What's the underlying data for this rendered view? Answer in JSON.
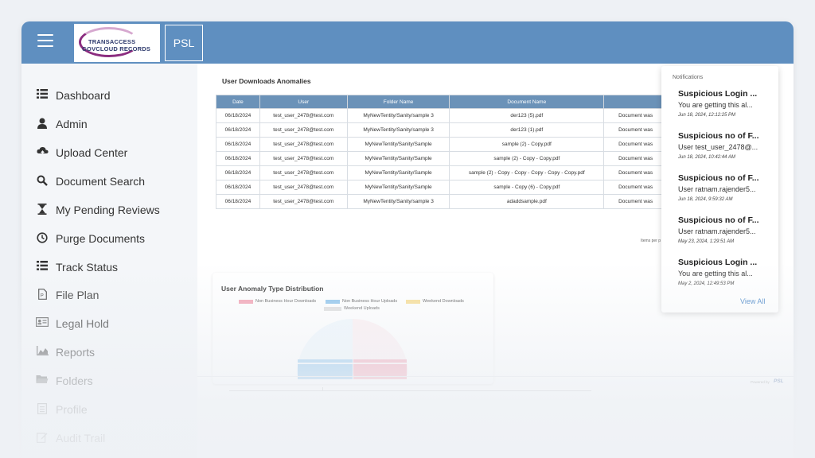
{
  "header": {
    "logo_line1": "TRANSACCESS",
    "logo_line2": "GOVCLOUD RECORDS",
    "psl_label": "PSL"
  },
  "sidebar": {
    "items": [
      {
        "label": "Dashboard",
        "icon": "list-icon"
      },
      {
        "label": "Admin",
        "icon": "user-icon"
      },
      {
        "label": "Upload Center",
        "icon": "cloud-upload-icon"
      },
      {
        "label": "Document Search",
        "icon": "search-icon"
      },
      {
        "label": "My Pending Reviews",
        "icon": "hourglass-icon"
      },
      {
        "label": "Purge Documents",
        "icon": "clock-icon"
      },
      {
        "label": "Track Status",
        "icon": "list-icon"
      },
      {
        "label": "File Plan",
        "icon": "file-icon"
      },
      {
        "label": "Legal Hold",
        "icon": "id-card-icon"
      },
      {
        "label": "Reports",
        "icon": "chart-icon"
      },
      {
        "label": "Folders",
        "icon": "folder-icon"
      },
      {
        "label": "Profile",
        "icon": "profile-icon"
      },
      {
        "label": "Audit Trail",
        "icon": "edit-icon"
      }
    ]
  },
  "downloads": {
    "title": "User Downloads Anomalies",
    "columns": [
      "Date",
      "User",
      "Folder Name",
      "Document Name",
      ""
    ],
    "rows": [
      [
        "06/18/2024",
        "test_user_2478@test.com",
        "MyNewTentity/Sanity/sample 3",
        "der123 (5).pdf",
        "Document was"
      ],
      [
        "06/18/2024",
        "test_user_2478@test.com",
        "MyNewTentity/Sanity/sample 3",
        "der123 (1).pdf",
        "Document was"
      ],
      [
        "06/18/2024",
        "test_user_2478@test.com",
        "MyNewTentity/Sanity/Sample",
        "sample (2) - Copy.pdf",
        "Document was"
      ],
      [
        "06/18/2024",
        "test_user_2478@test.com",
        "MyNewTentity/Sanity/Sample",
        "sample (2) - Copy - Copy.pdf",
        "Document was"
      ],
      [
        "06/18/2024",
        "test_user_2478@test.com",
        "MyNewTentity/Sanity/Sample",
        "sample (2) - Copy - Copy - Copy - Copy - Copy.pdf",
        "Document was"
      ],
      [
        "06/18/2024",
        "test_user_2478@test.com",
        "MyNewTentity/Sanity/Sample",
        "sample - Copy (6) - Copy.pdf",
        "Document was"
      ],
      [
        "06/18/2024",
        "test_user_2478@test.com",
        "MyNewTentity/Sanity/sample 3",
        "adaddsample.pdf",
        "Document was"
      ]
    ],
    "items_per_page": "Items per p"
  },
  "anomaly_chart": {
    "title": "User Anomaly Type Distribution",
    "legend": [
      {
        "label": "Non Business Hour Downloads",
        "color": "#f4a3b4"
      },
      {
        "label": "Non Business Hour Uploads",
        "color": "#8ec4ec"
      },
      {
        "label": "Weekend Downloads",
        "color": "#f7dd93"
      },
      {
        "label": "Weekend Uploads",
        "color": "#dddddd"
      }
    ]
  },
  "footer": {
    "powered_by": "Powered by",
    "psl_logo": "PSL"
  },
  "notifications": {
    "header": "Notifications",
    "items": [
      {
        "title": "Suspicious Login ...",
        "message": "You are getting this al...",
        "time": "Jun 18, 2024, 12:12:25 PM"
      },
      {
        "title": "Suspicious no of F...",
        "message": "User test_user_2478@...",
        "time": "Jun 18, 2024, 10:42:44 AM"
      },
      {
        "title": "Suspicious no of F...",
        "message": "User ratnam.rajender5...",
        "time": "Jun 18, 2024, 9:59:32 AM"
      },
      {
        "title": "Suspicious no of F...",
        "message": "User ratnam.rajender5...",
        "time": "May 23, 2024, 1:29:51 AM"
      },
      {
        "title": "Suspicious Login ...",
        "message": "You are getting this al...",
        "time": "May 2, 2024, 12:49:53 PM"
      }
    ],
    "view_all": "View All"
  }
}
